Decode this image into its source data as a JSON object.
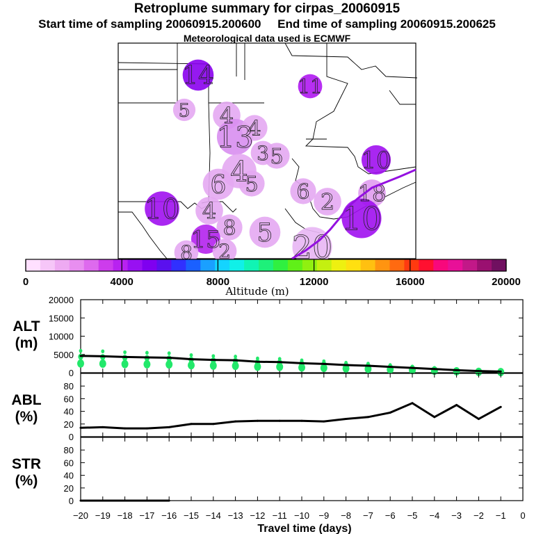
{
  "header": {
    "title": "Retroplume summary for cirpas_20060915",
    "subtitle": "Start time of sampling 20060915.200600     End time of sampling 20060915.200625",
    "meteo": "Meteorological data used is ECMWF"
  },
  "colorbar": {
    "label": "Altitude (m)",
    "min": 0,
    "max": 20000,
    "ticks": [
      "0",
      "4000",
      "8000",
      "12000",
      "16000",
      "20000"
    ],
    "colors": [
      "#ffe0ff",
      "#f6c6f8",
      "#eeaaf2",
      "#e88ef0",
      "#de6aee",
      "#cd3cec",
      "#b822f0",
      "#9810f2",
      "#7f00f0",
      "#5a10ee",
      "#3030ff",
      "#1a60ff",
      "#1aa0ff",
      "#14d4ff",
      "#10f0e8",
      "#10f4b4",
      "#1ef07a",
      "#30f040",
      "#60f018",
      "#90f010",
      "#c4f010",
      "#eef010",
      "#ffe010",
      "#ffc010",
      "#ff9410",
      "#ff6a10",
      "#ff3a10",
      "#ff1030",
      "#f8087c",
      "#e81098",
      "#c21888",
      "#9a1070",
      "#701060"
    ]
  },
  "map": {
    "labels": [
      {
        "text": "14",
        "x": 285,
        "y": 108,
        "size": 36
      },
      {
        "text": "11",
        "x": 446,
        "y": 124,
        "size": 28
      },
      {
        "text": "5",
        "x": 265,
        "y": 158,
        "size": 26
      },
      {
        "text": "4",
        "x": 326,
        "y": 166,
        "size": 32
      },
      {
        "text": "13",
        "x": 338,
        "y": 197,
        "size": 42
      },
      {
        "text": "4",
        "x": 366,
        "y": 184,
        "size": 30
      },
      {
        "text": "5",
        "x": 398,
        "y": 224,
        "size": 30
      },
      {
        "text": "3",
        "x": 378,
        "y": 220,
        "size": 28
      },
      {
        "text": "10",
        "x": 541,
        "y": 230,
        "size": 34
      },
      {
        "text": "4",
        "x": 344,
        "y": 246,
        "size": 40
      },
      {
        "text": "6",
        "x": 314,
        "y": 265,
        "size": 36
      },
      {
        "text": "5",
        "x": 362,
        "y": 264,
        "size": 30
      },
      {
        "text": "6",
        "x": 436,
        "y": 275,
        "size": 30
      },
      {
        "text": "18",
        "x": 535,
        "y": 278,
        "size": 32
      },
      {
        "text": "2",
        "x": 471,
        "y": 290,
        "size": 32
      },
      {
        "text": "10",
        "x": 233,
        "y": 300,
        "size": 40
      },
      {
        "text": "4",
        "x": 301,
        "y": 303,
        "size": 32
      },
      {
        "text": "10",
        "x": 520,
        "y": 314,
        "size": 46
      },
      {
        "text": "5",
        "x": 381,
        "y": 334,
        "size": 36
      },
      {
        "text": "8",
        "x": 330,
        "y": 327,
        "size": 30
      },
      {
        "text": "15",
        "x": 296,
        "y": 344,
        "size": 34
      },
      {
        "text": "2",
        "x": 323,
        "y": 361,
        "size": 28
      },
      {
        "text": "20",
        "x": 449,
        "y": 355,
        "size": 46
      },
      {
        "text": "8",
        "x": 268,
        "y": 363,
        "size": 28
      }
    ]
  },
  "chart_data": [
    {
      "type": "line",
      "ylabel": "ALT (m)",
      "yticks": [
        "0",
        "5000",
        "10000",
        "15000",
        "20000"
      ],
      "ylim": [
        0,
        20000
      ],
      "x": [
        -20,
        -19,
        -18,
        -17,
        -16,
        -15,
        -14,
        -13,
        -12,
        -11,
        -10,
        -9,
        -8,
        -7,
        -6,
        -5,
        -4,
        -3,
        -2,
        -1
      ],
      "values": [
        4600,
        4500,
        4300,
        4200,
        4100,
        3700,
        3500,
        3400,
        3000,
        2900,
        2600,
        2400,
        2100,
        1900,
        1600,
        1300,
        1000,
        700,
        450,
        300
      ],
      "scatter_color": "#22e86a"
    },
    {
      "type": "line",
      "ylabel": "ABL (%)",
      "yticks": [
        "0",
        "20",
        "40",
        "60",
        "80"
      ],
      "ylim": [
        0,
        100
      ],
      "x": [
        -20,
        -19,
        -18,
        -17,
        -16,
        -15,
        -14,
        -13,
        -12,
        -11,
        -10,
        -9,
        -8,
        -7,
        -6,
        -5,
        -4,
        -3,
        -2,
        -1
      ],
      "values": [
        14,
        15,
        13,
        13,
        15,
        20,
        20,
        24,
        25,
        25,
        25,
        24,
        28,
        31,
        38,
        53,
        31,
        50,
        28,
        47
      ]
    },
    {
      "type": "line",
      "ylabel": "STR (%)",
      "yticks": [
        "0",
        "20",
        "40",
        "60",
        "80"
      ],
      "ylim": [
        0,
        100
      ],
      "x": [
        -20,
        -19,
        -18,
        -17,
        -16
      ],
      "values": [
        0,
        0,
        0,
        0,
        0
      ]
    }
  ],
  "xaxis": {
    "label": "Travel time (days)",
    "ticks": [
      "−20",
      "−19",
      "−18",
      "−17",
      "−16",
      "−15",
      "−14",
      "−13",
      "−12",
      "−11",
      "−10",
      "−9",
      "−8",
      "−7",
      "−6",
      "−5",
      "−4",
      "−3",
      "−2",
      "−1",
      "0"
    ]
  }
}
